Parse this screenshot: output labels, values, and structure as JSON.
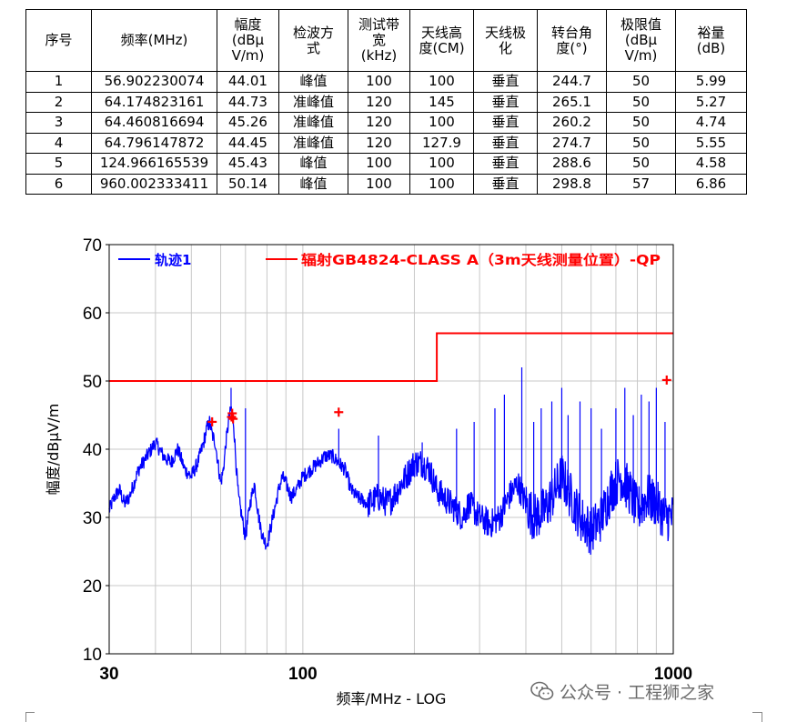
{
  "table": {
    "headers": [
      [
        "序号"
      ],
      [
        "频率(MHz)"
      ],
      [
        "幅度",
        "(dBμ",
        "V/m)"
      ],
      [
        "检波方",
        "式"
      ],
      [
        "测试带",
        "宽",
        "(kHz)"
      ],
      [
        "天线高",
        "度(CM)"
      ],
      [
        "天线极",
        "化"
      ],
      [
        "转台角",
        "度(°)"
      ],
      [
        "极限值",
        "(dBμ",
        "V/m)"
      ],
      [
        "裕量",
        "(dB)"
      ]
    ],
    "rows": [
      [
        "1",
        "56.902230074",
        "44.01",
        "峰值",
        "100",
        "100",
        "垂直",
        "244.7",
        "50",
        "5.99"
      ],
      [
        "2",
        "64.174823161",
        "44.73",
        "准峰值",
        "120",
        "145",
        "垂直",
        "265.1",
        "50",
        "5.27"
      ],
      [
        "3",
        "64.460816694",
        "45.26",
        "准峰值",
        "120",
        "100",
        "垂直",
        "260.2",
        "50",
        "4.74"
      ],
      [
        "4",
        "64.796147872",
        "44.45",
        "准峰值",
        "120",
        "127.9",
        "垂直",
        "274.7",
        "50",
        "5.55"
      ],
      [
        "5",
        "124.966165539",
        "45.43",
        "峰值",
        "100",
        "100",
        "垂直",
        "288.6",
        "50",
        "4.58"
      ],
      [
        "6",
        "960.002333411",
        "50.14",
        "峰值",
        "100",
        "100",
        "垂直",
        "298.8",
        "57",
        "6.86"
      ]
    ]
  },
  "chart_data": {
    "type": "line",
    "xscale": "log",
    "xlim": [
      30,
      1000
    ],
    "ylim": [
      10,
      70
    ],
    "xticks": [
      30,
      100,
      1000
    ],
    "xtick_labels": [
      "30",
      "100",
      "1000"
    ],
    "yticks": [
      10,
      20,
      30,
      40,
      50,
      60,
      70
    ],
    "ytick_labels": [
      "10",
      "20",
      "30",
      "40",
      "50",
      "60",
      "70"
    ],
    "xlabel": "频率/MHz - LOG",
    "ylabel": "幅度/dBμV/m",
    "legend_position": "top",
    "series": [
      {
        "name": "轨迹1",
        "color": "#0000ff",
        "x": [
          30,
          31,
          32,
          33,
          34,
          35,
          36,
          38,
          40,
          42,
          44,
          46,
          48,
          50,
          52,
          54,
          55,
          56,
          57,
          58,
          59,
          60,
          61,
          62,
          63,
          64,
          65,
          66,
          67,
          68,
          69,
          70,
          72,
          74,
          76,
          78,
          80,
          83,
          86,
          88,
          90,
          93,
          96,
          100,
          105,
          110,
          115,
          120,
          125,
          130,
          135,
          140,
          150,
          160,
          170,
          180,
          190,
          200,
          210,
          220,
          230,
          240,
          250,
          260,
          270,
          280,
          300,
          320,
          340,
          360,
          380,
          400,
          420,
          450,
          480,
          500,
          530,
          560,
          600,
          640,
          680,
          720,
          760,
          800,
          850,
          900,
          950,
          1000
        ],
        "y": [
          31,
          33,
          34,
          32,
          33,
          35,
          37,
          39,
          41,
          39,
          38,
          40,
          37,
          36,
          38,
          41,
          43,
          44,
          42,
          41,
          38,
          35,
          37,
          41,
          44,
          46,
          44,
          38,
          33,
          31,
          29,
          27,
          32,
          35,
          30,
          27,
          26,
          30,
          34,
          36,
          35,
          33,
          34,
          36,
          37,
          38,
          39,
          39,
          38,
          37,
          34,
          33,
          32,
          33,
          32,
          34,
          36,
          38,
          38,
          37,
          34,
          33,
          32,
          31,
          30,
          32,
          30,
          29,
          30,
          33,
          35,
          32,
          30,
          31,
          34,
          36,
          33,
          30,
          28,
          30,
          34,
          36,
          34,
          31,
          33,
          32,
          30,
          30
        ]
      },
      {
        "name": "辐射GB4824-CLASS A（3m天线测量位置）-QP",
        "color": "#ff0000",
        "x": [
          30,
          230,
          230,
          1000
        ],
        "y": [
          50,
          50,
          57,
          57
        ]
      }
    ],
    "markers": {
      "color": "#ff0000",
      "x": [
        56.902230074,
        64.174823161,
        64.460816694,
        64.796147872,
        124.966165539,
        960.002333411
      ],
      "y": [
        44.01,
        44.73,
        45.26,
        44.45,
        45.43,
        50.14
      ]
    },
    "spikes": {
      "x": [
        64,
        70,
        125,
        160,
        210,
        260,
        290,
        330,
        350,
        390,
        420,
        440,
        470,
        500,
        520,
        560,
        600,
        640,
        700,
        740,
        780,
        820,
        860,
        900,
        950
      ],
      "y": [
        49,
        46,
        43,
        42,
        41,
        43,
        44,
        46,
        48,
        52,
        44,
        46,
        47,
        49,
        45,
        47,
        46,
        43,
        46,
        49,
        45,
        48,
        47,
        49,
        44
      ]
    }
  },
  "watermark": {
    "text": "公众号 · 工程狮之家"
  }
}
